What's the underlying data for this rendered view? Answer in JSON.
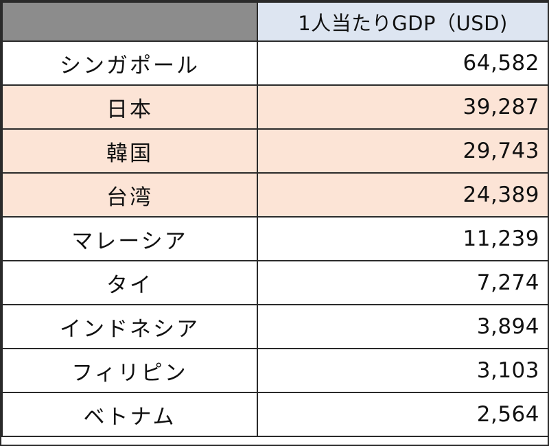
{
  "table": {
    "header": {
      "country_col": "",
      "gdp_col": "1人当たりGDP（USD)"
    },
    "highlight_color": "#fce4d6",
    "rows": [
      {
        "country": "シンガポール",
        "gdp": "64,582",
        "highlighted": false
      },
      {
        "country": "日本",
        "gdp": "39,287",
        "highlighted": true
      },
      {
        "country": "韓国",
        "gdp": "29,743",
        "highlighted": true
      },
      {
        "country": "台湾",
        "gdp": "24,389",
        "highlighted": true
      },
      {
        "country": "マレーシア",
        "gdp": "11,239",
        "highlighted": false
      },
      {
        "country": "タイ",
        "gdp": "7,274",
        "highlighted": false
      },
      {
        "country": "インドネシア",
        "gdp": "3,894",
        "highlighted": false
      },
      {
        "country": "フィリピン",
        "gdp": "3,103",
        "highlighted": false
      },
      {
        "country": "ベトナム",
        "gdp": "2,564",
        "highlighted": false
      }
    ]
  }
}
